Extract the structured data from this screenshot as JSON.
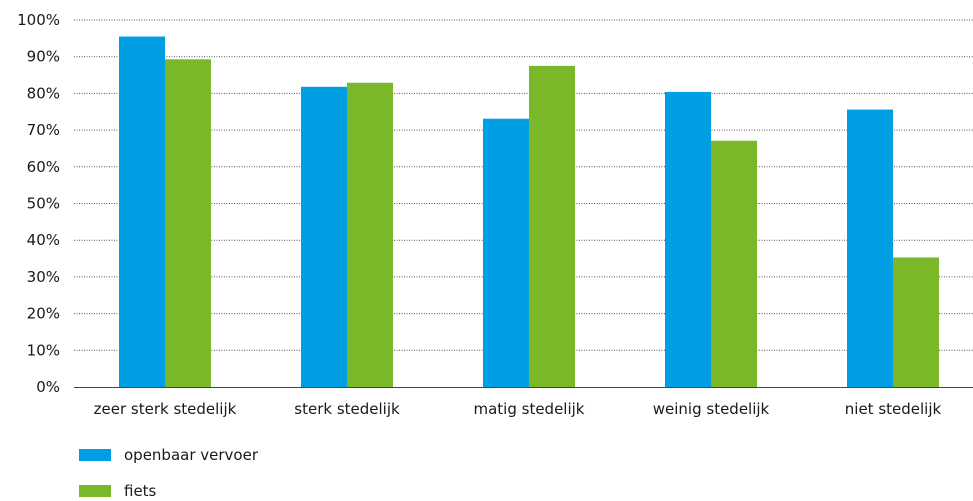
{
  "chart_data": {
    "type": "bar",
    "categories": [
      "zeer sterk stedelijk",
      "sterk stedelijk",
      "matig stedelijk",
      "weinig stedelijk",
      "niet stedelijk"
    ],
    "series": [
      {
        "name": "openbaar vervoer",
        "color": "#009ee3",
        "values": [
          95.5,
          81.8,
          73.1,
          80.4,
          75.6
        ]
      },
      {
        "name": "fiets",
        "color": "#7ab829",
        "values": [
          89.3,
          82.9,
          87.5,
          67.1,
          35.3
        ]
      }
    ],
    "ylim": [
      0,
      100
    ],
    "yticks": [
      "0%",
      "10%",
      "20%",
      "30%",
      "40%",
      "50%",
      "60%",
      "70%",
      "80%",
      "90%",
      "100%"
    ],
    "grid": true,
    "legend_position": "bottom-left",
    "title": "",
    "xlabel": "",
    "ylabel": ""
  }
}
